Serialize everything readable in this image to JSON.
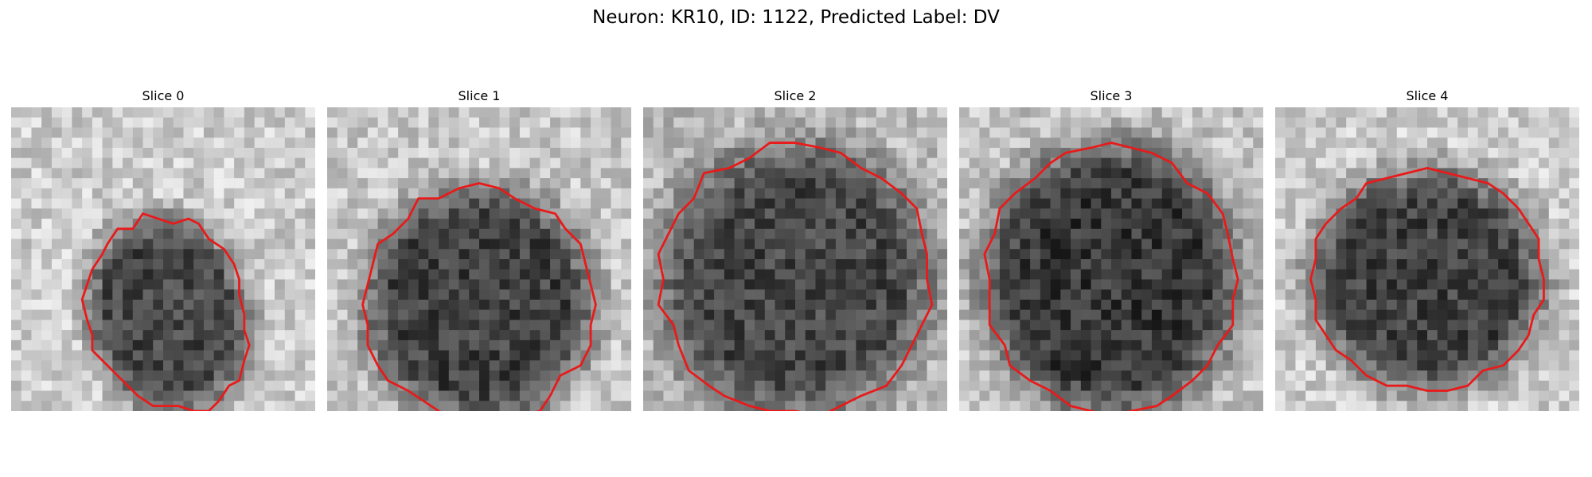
{
  "figure": {
    "title": "Neuron: KR10, ID: 1122, Predicted Label: DV"
  },
  "colors": {
    "contour": "#e81a1a",
    "background": "#ffffff"
  },
  "panels": [
    {
      "title": "Slice 0"
    },
    {
      "title": "Slice 1"
    },
    {
      "title": "Slice 2"
    },
    {
      "title": "Slice 3"
    },
    {
      "title": "Slice 4"
    }
  ]
}
